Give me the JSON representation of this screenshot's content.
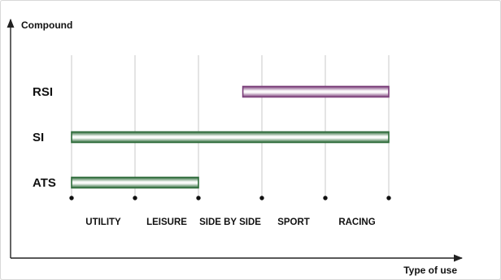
{
  "chart_data": {
    "type": "bar",
    "orientation": "horizontal-range",
    "ylabel": "Compound",
    "xlabel": "Type of use",
    "categories": [
      "UTILITY",
      "LEISURE",
      "SIDE BY SIDE",
      "SPORT",
      "RACING"
    ],
    "series": [
      {
        "name": "RSI",
        "start": 3.7,
        "end": 6,
        "color": "#7b3f7a"
      },
      {
        "name": "SI",
        "start": 1,
        "end": 6,
        "color": "#2e6b3a"
      },
      {
        "name": "ATS",
        "start": 1,
        "end": 3,
        "color": "#2e6b3a"
      }
    ],
    "grid": true
  }
}
